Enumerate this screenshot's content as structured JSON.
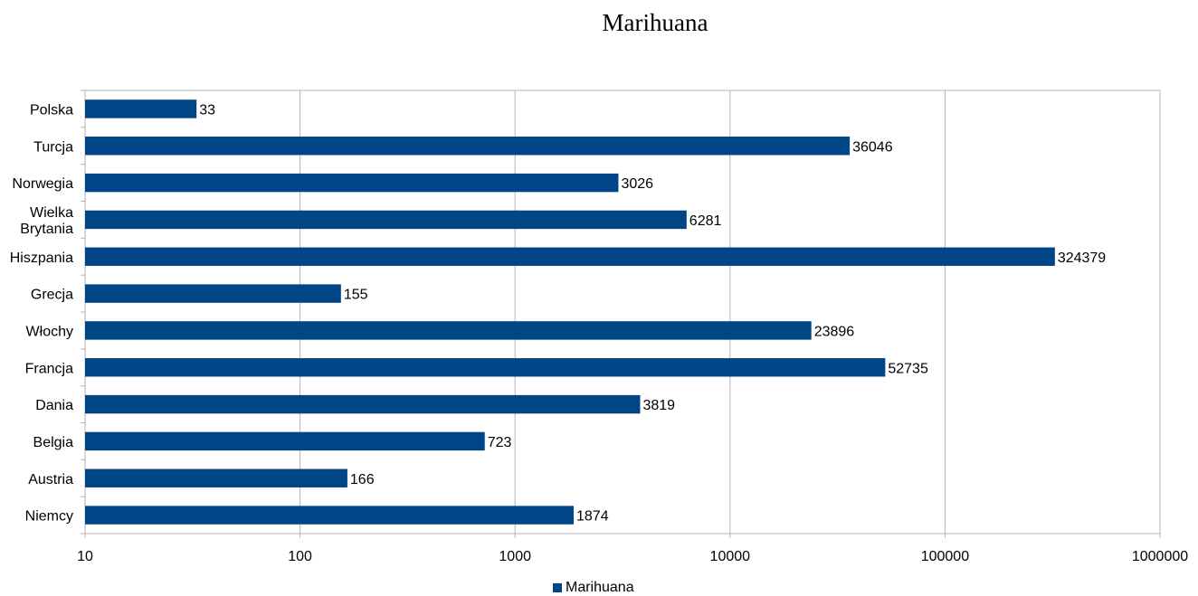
{
  "chart_data": {
    "type": "bar",
    "orientation": "horizontal",
    "title": "Marihuana",
    "xscale": "log",
    "xlim": [
      10,
      1000000
    ],
    "xticks": [
      "10",
      "100",
      "1000",
      "10000",
      "100000",
      "1000000"
    ],
    "grid": true,
    "legend_position": "bottom",
    "series_color": "#004586",
    "categories": [
      "Polska",
      "Turcja",
      "Norwegia",
      "Wielka Brytania",
      "Hiszpania",
      "Grecja",
      "Włochy",
      "Francja",
      "Dania",
      "Belgia",
      "Austria",
      "Niemcy"
    ],
    "category_lines": [
      [
        "Polska"
      ],
      [
        "Turcja"
      ],
      [
        "Norwegia"
      ],
      [
        "Wielka",
        "Brytania"
      ],
      [
        "Hiszpania"
      ],
      [
        "Grecja"
      ],
      [
        "Włochy"
      ],
      [
        "Francja"
      ],
      [
        "Dania"
      ],
      [
        "Belgia"
      ],
      [
        "Austria"
      ],
      [
        "Niemcy"
      ]
    ],
    "series": [
      {
        "name": "Marihuana",
        "values": [
          33,
          36046,
          3026,
          6281,
          324379,
          155,
          23896,
          52735,
          3819,
          723,
          166,
          1874
        ]
      }
    ]
  }
}
